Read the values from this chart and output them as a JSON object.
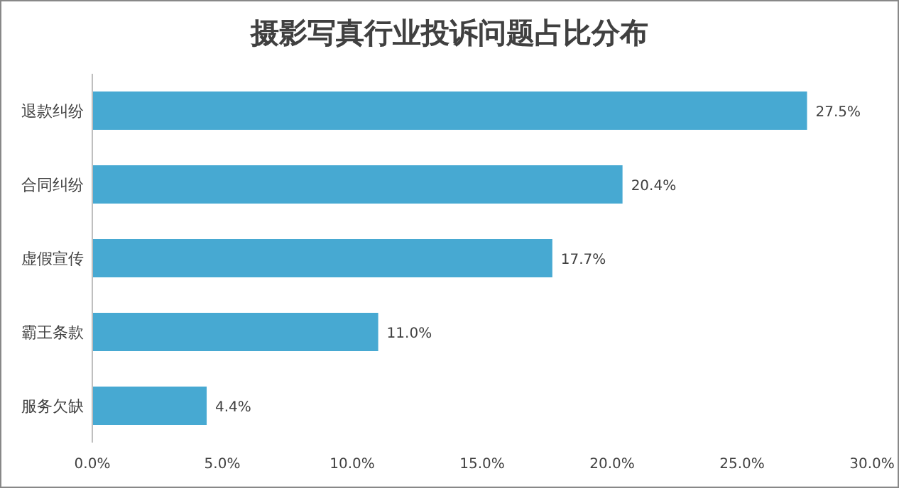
{
  "chart_data": {
    "type": "bar",
    "orientation": "horizontal",
    "title": "摄影写真行业投诉问题占比分布",
    "categories": [
      "退款纠纷",
      "合同纠纷",
      "虚假宣传",
      "霸王条款",
      "服务欠缺"
    ],
    "values": [
      27.5,
      20.4,
      17.7,
      11.0,
      4.4
    ],
    "value_labels": [
      "27.5%",
      "20.4%",
      "17.7%",
      "11.0%",
      "4.4%"
    ],
    "color": "#47a9d2",
    "xlim": [
      0,
      30
    ],
    "xticks": [
      {
        "value": 0,
        "label": "0.0%"
      },
      {
        "value": 5,
        "label": "5.0%"
      },
      {
        "value": 10,
        "label": "10.0%"
      },
      {
        "value": 15,
        "label": "15.0%"
      },
      {
        "value": 20,
        "label": "20.0%"
      },
      {
        "value": 25,
        "label": "25.0%"
      },
      {
        "value": 30,
        "label": "30.0%"
      }
    ]
  }
}
